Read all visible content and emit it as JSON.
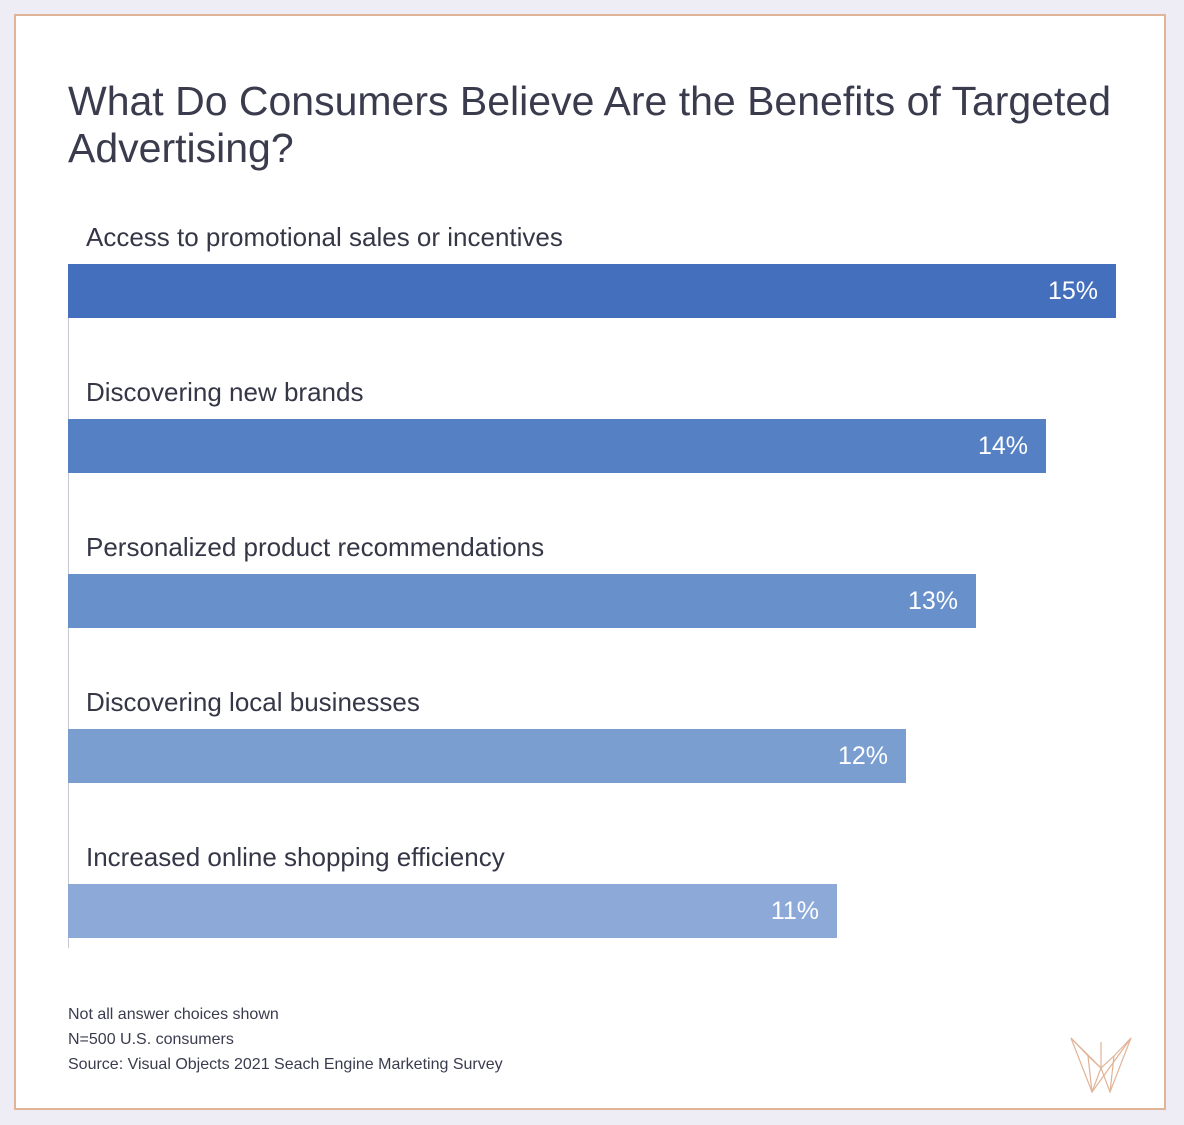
{
  "chart_data": {
    "type": "bar",
    "orientation": "horizontal",
    "title": "What Do Consumers Believe Are the Benefits of Targeted Advertising?",
    "categories": [
      "Access to promotional sales or incentives",
      "Discovering new brands",
      "Personalized product recommendations",
      "Discovering local businesses",
      "Increased online shopping efficiency"
    ],
    "values": [
      15,
      14,
      13,
      12,
      11
    ],
    "value_labels": [
      "15%",
      "14%",
      "13%",
      "12%",
      "11%"
    ],
    "bar_colors": [
      "#446fbc",
      "#5580c4",
      "#6890cb",
      "#7b9ed1",
      "#8ca9d8"
    ],
    "xlim": [
      0,
      15
    ],
    "grid": false,
    "legend": "none"
  },
  "footnotes": {
    "line1": "Not all answer choices shown",
    "line2": "N=500 U.S. consumers",
    "line3": "Source: Visual Objects 2021 Seach Engine Marketing Survey"
  },
  "colors": {
    "background": "#eeedf6",
    "card_border": "#e2b497",
    "title_text": "#3a3c4e",
    "logo": "#e2b497"
  },
  "logo": {
    "icon": "visual-objects-logo-icon"
  }
}
